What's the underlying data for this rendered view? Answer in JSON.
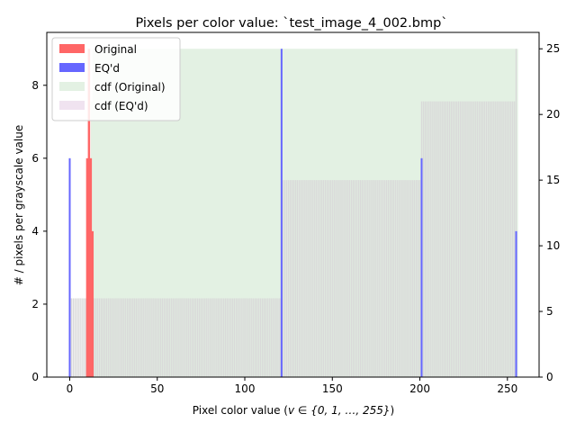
{
  "chart_data": {
    "type": "bar",
    "title": "Pixels per color value: `test_image_4_002.bmp`",
    "xlabel_prefix": "Pixel color value (",
    "xlabel_math": "v ∈ {0, 1, …, 255}",
    "xlabel_suffix": ")",
    "ylabel": "# / pixels per grayscale value",
    "xlim": [
      -13.1,
      268.1
    ],
    "ylim": [
      0,
      9.45
    ],
    "y2lim": [
      0,
      26.25
    ],
    "x_ticks": [
      0,
      50,
      100,
      150,
      200,
      250
    ],
    "y_ticks": [
      0,
      2,
      4,
      6,
      8
    ],
    "y2_ticks": [
      0,
      5,
      10,
      15,
      20,
      25
    ],
    "legend_position": "upper-left",
    "colors": {
      "original": "#ff6666",
      "eqd": "#6666ff",
      "cdf_original": "#e3f1e3",
      "cdf_eqd": "#f0e3f0",
      "gray_bar": "#d9d9d9"
    },
    "series": [
      {
        "name": "Original",
        "kind": "histogram",
        "x": [
          10,
          11,
          12,
          13
        ],
        "values": [
          6,
          9,
          6,
          4
        ]
      },
      {
        "name": "EQ'd",
        "kind": "histogram",
        "x": [
          0,
          121,
          201,
          255
        ],
        "values": [
          6,
          9,
          6,
          4
        ]
      },
      {
        "name": "cdf (Original)",
        "kind": "cdf",
        "axis": "right",
        "x": [
          10,
          11,
          12,
          13,
          255
        ],
        "values": [
          6,
          15,
          21,
          25,
          25
        ]
      },
      {
        "name": "cdf (EQ'd)",
        "kind": "cdf",
        "axis": "right",
        "x": [
          0,
          121,
          201,
          255
        ],
        "values": [
          6,
          15,
          21,
          25
        ]
      }
    ]
  }
}
